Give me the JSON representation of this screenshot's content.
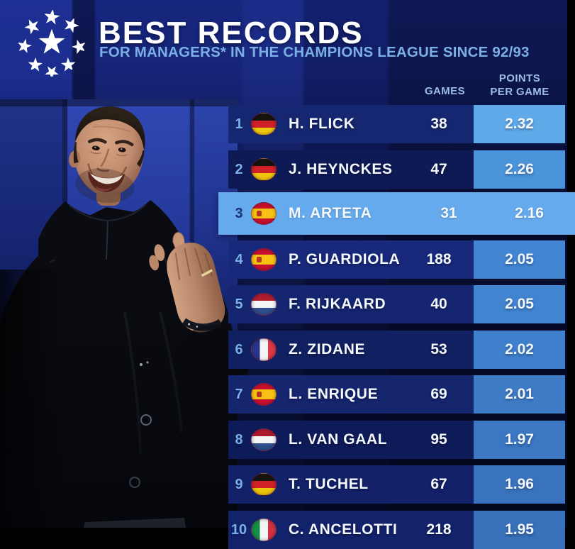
{
  "header": {
    "title": "BEST RECORDS",
    "subtitle": "FOR MANAGERS* IN THE CHAMPIONS LEAGUE SINCE 92/93",
    "logo": "champions-league-starball"
  },
  "photo": {
    "subject": "Mikel Arteta clapping in a black coat"
  },
  "colors": {
    "page_bg": "#0a1343",
    "title_white": "#ffffff",
    "subtitle_blue": "#7cb0e4",
    "column_header_blue": "#9cbce8",
    "rank_blue": "#79b1ea",
    "highlight_row_blue": "#65aaec",
    "highlight_rank_navy": "#1d3070"
  },
  "chart_data": {
    "type": "table",
    "title": "BEST RECORDS",
    "subtitle": "FOR MANAGERS* IN THE CHAMPIONS LEAGUE SINCE 92/93",
    "columns": {
      "games_label": "GAMES",
      "ppg_label_line1": "POINTS",
      "ppg_label_line2": "PER GAME"
    },
    "highlighted_rank": "3",
    "rows": [
      {
        "rank": "1",
        "country": "germany",
        "name": "H. FLICK",
        "games": "38",
        "ppg": "2.32",
        "highlight": false,
        "row_color": "#162771",
        "ppg_color": "#60a9e9"
      },
      {
        "rank": "2",
        "country": "germany",
        "name": "J. HEYNCKES",
        "games": "47",
        "ppg": "2.26",
        "highlight": false,
        "row_color": "#0d1a55",
        "ppg_color": "#4b94da"
      },
      {
        "rank": "3",
        "country": "spain",
        "name": "M. ARTETA",
        "games": "31",
        "ppg": "2.16",
        "highlight": true,
        "row_color": "#65aaec",
        "ppg_color": "#65aaec"
      },
      {
        "rank": "4",
        "country": "spain",
        "name": "P. GUARDIOLA",
        "games": "188",
        "ppg": "2.05",
        "highlight": false,
        "row_color": "#18297b",
        "ppg_color": "#4285d3"
      },
      {
        "rank": "5",
        "country": "netherlands",
        "name": "F. RIJKAARD",
        "games": "40",
        "ppg": "2.05",
        "highlight": false,
        "row_color": "#152570",
        "ppg_color": "#4184d0"
      },
      {
        "rank": "6",
        "country": "france",
        "name": "Z. ZIDANE",
        "games": "53",
        "ppg": "2.02",
        "highlight": false,
        "row_color": "#102061",
        "ppg_color": "#3f80cc"
      },
      {
        "rank": "7",
        "country": "spain",
        "name": "L. ENRIQUE",
        "games": "69",
        "ppg": "2.01",
        "highlight": false,
        "row_color": "#15256e",
        "ppg_color": "#3e7cc7"
      },
      {
        "rank": "8",
        "country": "netherlands",
        "name": "L. VAN GAAL",
        "games": "95",
        "ppg": "1.97",
        "highlight": false,
        "row_color": "#0e1b59",
        "ppg_color": "#3b77c2"
      },
      {
        "rank": "9",
        "country": "germany",
        "name": "T. TUCHEL",
        "games": "67",
        "ppg": "1.96",
        "highlight": false,
        "row_color": "#122168",
        "ppg_color": "#3973bd"
      },
      {
        "rank": "10",
        "country": "italy",
        "name": "C. ANCELOTTI",
        "games": "218",
        "ppg": "1.95",
        "highlight": false,
        "row_color": "#13236b",
        "ppg_color": "#3871b9"
      }
    ]
  }
}
